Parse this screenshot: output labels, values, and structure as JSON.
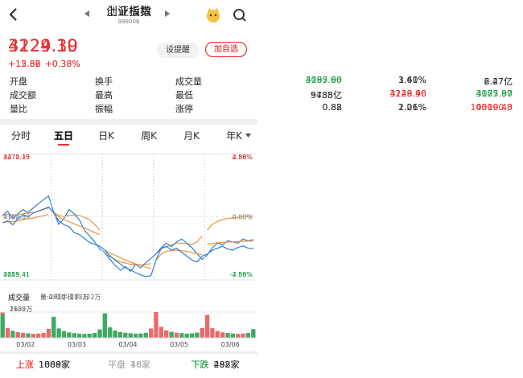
{
  "panels": [
    {
      "title": "上证指数",
      "code": "000001",
      "price": "4124.19",
      "change": "+15.62",
      "change_pct": "+0.38%",
      "tone": "up",
      "buttons": [
        "设提醒",
        "加自选"
      ],
      "stats": [
        [
          {
            "label": "开盘",
            "value": "4085.90",
            "tone": "down"
          },
          {
            "label": "换手",
            "value": "1.41%",
            "tone": "flat"
          },
          {
            "label": "成交量",
            "value": "6.47亿",
            "tone": "flat"
          }
        ],
        [
          {
            "label": "成交额",
            "value": "9788亿",
            "tone": "flat"
          },
          {
            "label": "最高",
            "value": "4129.46",
            "tone": "up"
          },
          {
            "label": "最低",
            "value": "4085.90",
            "tone": "down"
          }
        ],
        [
          {
            "label": "量比",
            "value": "0.82",
            "tone": "flat"
          },
          {
            "label": "振幅",
            "value": "1.06%",
            "tone": "flat"
          },
          {
            "label": "涨停",
            "value": "4519.43",
            "tone": "up"
          }
        ]
      ],
      "tabs": [
        "分时",
        "五日",
        "日K",
        "周K",
        "月K",
        "年K"
      ],
      "active_tab": 1,
      "chart": {
        "ylim": [
          4055.41,
          4270.35
        ],
        "yticks": [
          4270.35,
          4162.88,
          4055.41
        ],
        "y2lim": [
          -2.58,
          2.58
        ],
        "y2ticks": [
          {
            "value": 2.58,
            "label": "2.58%"
          },
          {
            "value": 0,
            "label": "0.00%"
          },
          {
            "value": -2.58,
            "label": "-2.58%"
          }
        ],
        "price": [
          4165,
          4172,
          4160,
          4168,
          4175,
          4170,
          4178,
          4185,
          4192,
          4198,
          4170,
          4150,
          4160,
          4175,
          4168,
          4158,
          4140,
          4130,
          4120,
          4108,
          4102,
          4090,
          4080,
          4072,
          4078,
          4070,
          4082,
          4076,
          4085,
          4092,
          4100,
          4110,
          4118,
          4112,
          4120,
          4125,
          4118,
          4110,
          4100,
          4090,
          4098,
          4110,
          4118,
          4115,
          4122,
          4120,
          4118,
          4125,
          4122,
          4124.19
        ],
        "avg": [
          4165,
          4167,
          4166,
          4166,
          4168,
          4169,
          4170,
          4172,
          4175,
          4178,
          4170,
          4165,
          4163,
          4165,
          4166,
          4165,
          4162,
          4158,
          4150,
          4140,
          4100,
          4095,
          4090,
          4086,
          4084,
          4082,
          4082,
          4081,
          4082,
          4083,
          4100,
          4108,
          4112,
          4115,
          4118,
          4118,
          4117,
          4116,
          4120,
          4130,
          4140,
          4150,
          4155,
          4158,
          4160,
          4161,
          4162,
          4163,
          4163,
          4164
        ]
      },
      "volume": {
        "title": "成交量",
        "info": "量:0 现手:133万",
        "ylim": [
          0,
          2635
        ],
        "yticks": [
          {
            "value": 2635,
            "label": "2635万"
          }
        ],
        "values": [
          2635,
          900,
          620,
          480,
          420,
          380,
          330,
          350,
          420,
          760,
          2100,
          850,
          600,
          500,
          430,
          390,
          360,
          380,
          450,
          820,
          2300,
          950,
          650,
          520,
          450,
          400,
          370,
          390,
          470,
          850,
          2500,
          1000,
          700,
          540,
          460,
          410,
          380,
          400,
          480,
          900,
          2200,
          880,
          610,
          490,
          420,
          380,
          350,
          370,
          440,
          780
        ]
      },
      "dates": [
        "03/02",
        "03/03",
        "03/04",
        "03/05",
        "03/06"
      ],
      "breadth": [
        {
          "label": "上涨",
          "value": "1808家",
          "tone": "up"
        },
        {
          "label": "平盘",
          "value": "48家",
          "tone": "flat"
        },
        {
          "label": "下跌",
          "value": "492家",
          "tone": "down"
        }
      ]
    },
    {
      "title": "创业板指",
      "code": "399006",
      "price": "3229.30",
      "change": "+12.36",
      "change_pct": "+0.38%",
      "tone": "up",
      "buttons": [
        "设提醒",
        "加自选"
      ],
      "stats": [
        [
          {
            "label": "开盘",
            "value": "3197.66",
            "tone": "down"
          },
          {
            "label": "换手",
            "value": "3.60%",
            "tone": "flat"
          },
          {
            "label": "成交量",
            "value": "2.27亿",
            "tone": "flat"
          }
        ],
        [
          {
            "label": "成交额",
            "value": "5435亿",
            "tone": "flat"
          },
          {
            "label": "最高",
            "value": "3248.90",
            "tone": "up"
          },
          {
            "label": "最低",
            "value": "3177.87",
            "tone": "down"
          }
        ],
        [
          {
            "label": "量比",
            "value": "0.88",
            "tone": "flat"
          },
          {
            "label": "振幅",
            "value": "2.21%",
            "tone": "flat"
          },
          {
            "label": "涨停",
            "value": "100000.0",
            "tone": "up"
          }
        ]
      ],
      "tabs": [
        "分时",
        "五日",
        "日K",
        "周K",
        "月K",
        "年K"
      ],
      "active_tab": 1,
      "chart": {
        "ylim": [
          3149.41,
          3471.19
        ],
        "yticks": [
          3471.19,
          3310.3,
          3149.41
        ],
        "y2lim": [
          -4.86,
          4.86
        ],
        "y2ticks": [
          {
            "value": 4.86,
            "label": "4.86%"
          },
          {
            "value": 0,
            "label": "0.00%"
          },
          {
            "value": -4.86,
            "label": "-4.86%"
          }
        ],
        "price": [
          3295,
          3300,
          3290,
          3305,
          3315,
          3310,
          3320,
          3325,
          3330,
          3335,
          3320,
          3300,
          3290,
          3285,
          3270,
          3265,
          3255,
          3245,
          3240,
          3235,
          3225,
          3210,
          3200,
          3190,
          3180,
          3175,
          3168,
          3162,
          3158,
          3160,
          3200,
          3230,
          3235,
          3225,
          3230,
          3220,
          3210,
          3200,
          3195,
          3210,
          3215,
          3225,
          3230,
          3235,
          3228,
          3225,
          3232,
          3236,
          3230,
          3229.3
        ],
        "avg": [
          3295,
          3298,
          3298,
          3300,
          3303,
          3305,
          3307,
          3310,
          3313,
          3316,
          3320,
          3310,
          3303,
          3298,
          3292,
          3287,
          3282,
          3276,
          3270,
          3265,
          3225,
          3218,
          3212,
          3206,
          3200,
          3195,
          3190,
          3186,
          3182,
          3178,
          3200,
          3215,
          3222,
          3224,
          3225,
          3224,
          3222,
          3219,
          3216,
          3214,
          3240,
          3242,
          3244,
          3245,
          3246,
          3246,
          3247,
          3248,
          3248,
          3249
        ]
      },
      "volume": {
        "title": "成交量",
        "info": "量:2810 现手:322万",
        "ylim": [
          0,
          1102
        ],
        "yticks": [
          {
            "value": 1102,
            "label": "1102万"
          }
        ],
        "values": [
          1000,
          420,
          300,
          240,
          210,
          190,
          170,
          180,
          210,
          380,
          900,
          400,
          290,
          230,
          200,
          180,
          165,
          175,
          205,
          360,
          1050,
          450,
          310,
          250,
          215,
          195,
          175,
          185,
          215,
          400,
          1102,
          470,
          320,
          255,
          220,
          200,
          180,
          190,
          220,
          420,
          980,
          410,
          295,
          235,
          205,
          185,
          168,
          178,
          208,
          370
        ]
      },
      "dates": [
        "03/02",
        "03/03",
        "03/04",
        "03/05",
        "03/06"
      ],
      "breadth": [
        {
          "label": "上涨",
          "value": "1089家",
          "tone": "up"
        },
        {
          "label": "平盘",
          "value": "16家",
          "tone": "flat"
        },
        {
          "label": "下跌",
          "value": "288家",
          "tone": "down"
        }
      ]
    }
  ]
}
